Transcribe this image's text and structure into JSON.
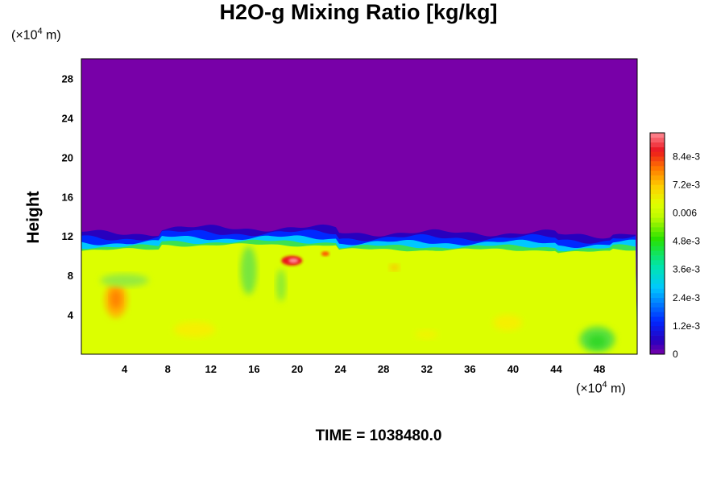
{
  "chart_data": {
    "type": "heatmap",
    "title": "H2O-g Mixing Ratio [kg/kg]",
    "xlabel": "",
    "ylabel": "Height",
    "x_units_prefix": "(×10",
    "x_units_exp": "4",
    "x_units_suffix": " m)",
    "y_units_prefix": "(×10",
    "y_units_exp": "4",
    "y_units_suffix": " m)",
    "xlim": [
      0,
      51.5
    ],
    "ylim": [
      0,
      30
    ],
    "x_ticks": [
      "4",
      "8",
      "12",
      "16",
      "20",
      "24",
      "28",
      "32",
      "36",
      "40",
      "44",
      "48"
    ],
    "y_ticks": [
      "4",
      "8",
      "12",
      "16",
      "20",
      "24",
      "28"
    ],
    "colorbar": {
      "range": [
        0,
        0.0094
      ],
      "tick_values": [
        0,
        0.0012,
        0.0024,
        0.0036,
        0.0048,
        0.006,
        0.0072,
        0.0084
      ],
      "tick_labels": [
        "0",
        "1.2e-3",
        "2.4e-3",
        "3.6e-3",
        "4.8e-3",
        "0.006",
        "7.2e-3",
        "8.4e-3"
      ]
    },
    "field_summary": {
      "upper_layer_value": 0,
      "lower_layer_value": 0.0062,
      "interface_height": 11.5,
      "max_value_near": {
        "x": 19.5,
        "y": 9.5,
        "value": 0.0092
      }
    },
    "annotation": "TIME = 1038480.0",
    "colors": {
      "upper": "#7800a8",
      "lower": "#dcff00"
    }
  }
}
